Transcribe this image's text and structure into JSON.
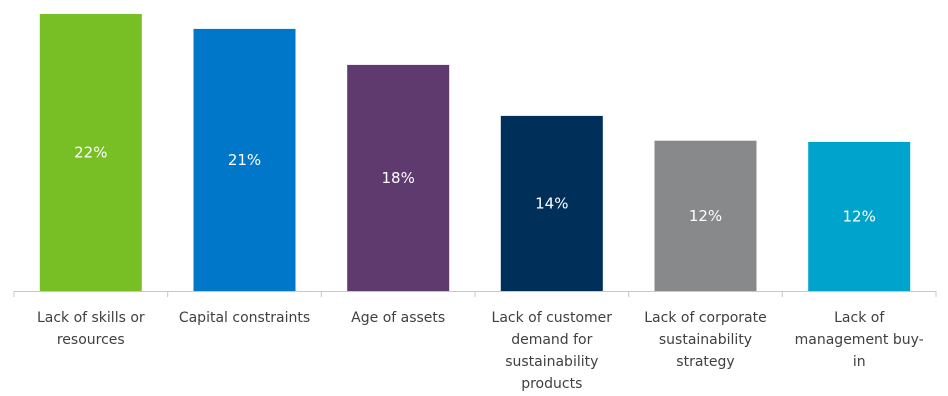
{
  "chart_data": {
    "type": "bar",
    "categories": [
      "Lack of skills or resources",
      "Capital constraints",
      "Age of assets",
      "Lack of customer demand for sustainability products",
      "Lack of corporate sustainability strategy",
      "Lack of management buy-in"
    ],
    "category_label_lines": [
      [
        "Lack of skills or",
        "resources"
      ],
      [
        "Capital constraints"
      ],
      [
        "Age of assets"
      ],
      [
        "Lack of customer",
        "demand for",
        "sustainability",
        "products"
      ],
      [
        "Lack of corporate",
        "sustainability",
        "strategy"
      ],
      [
        "Lack of",
        "management buy-",
        "in"
      ]
    ],
    "values": [
      22.3,
      21.1,
      18.2,
      14.1,
      12.1,
      12.0
    ],
    "data_labels": [
      "22%",
      "21%",
      "18%",
      "14%",
      "12%",
      "12%"
    ],
    "colors": [
      "#78bf26",
      "#0077c8",
      "#5e3a6e",
      "#00305a",
      "#87898b",
      "#00a3cc"
    ],
    "title": "",
    "xlabel": "",
    "ylabel": "",
    "ylim": [
      0,
      22.3
    ],
    "grid": false,
    "legend": "none"
  }
}
